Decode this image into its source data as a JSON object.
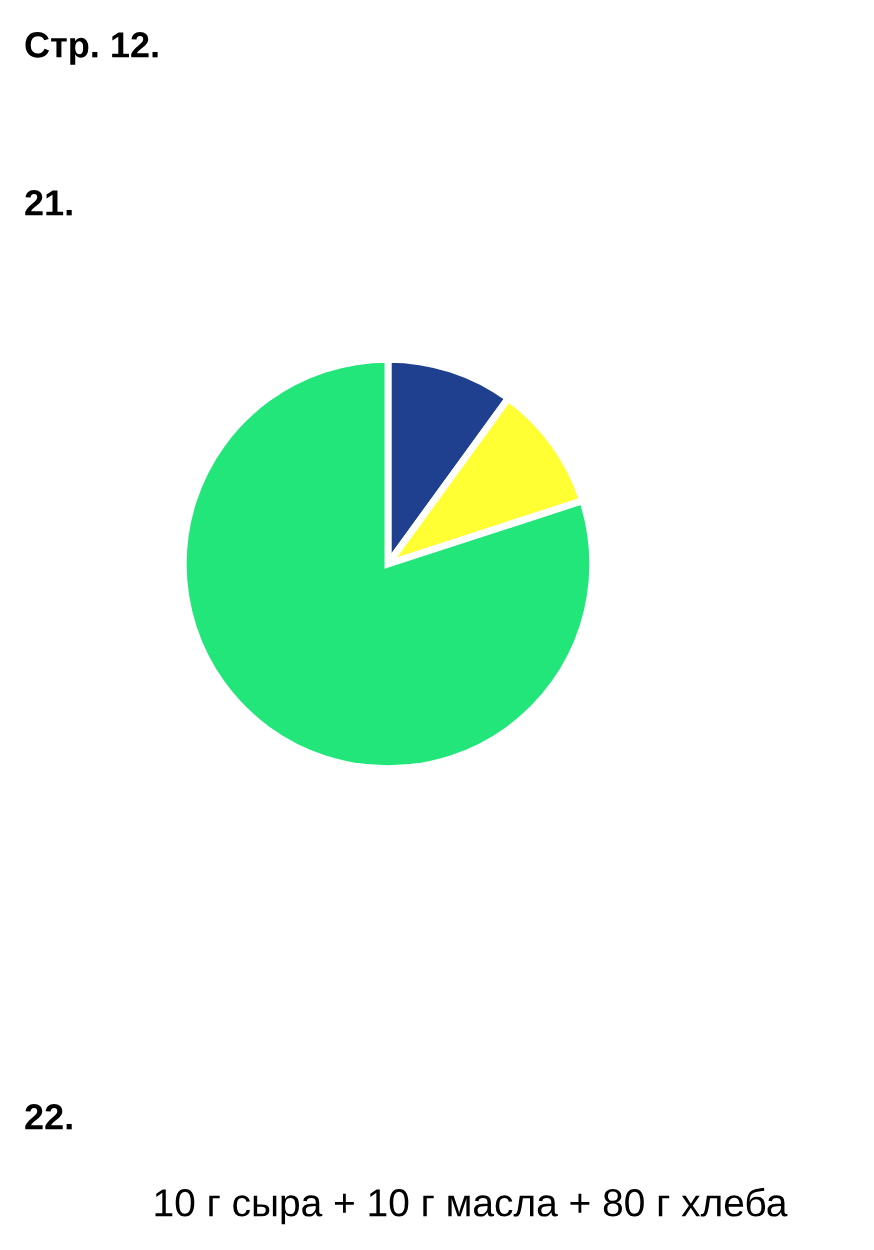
{
  "chart_data": {
    "type": "pie",
    "title": "Стр. 12.",
    "annotations": [
      "21.",
      "22.",
      "10 г сыра + 10 г масла + 80 г хлеба"
    ],
    "categories": [
      null,
      null,
      null
    ],
    "values": [
      10,
      10,
      80
    ],
    "colors": [
      "#1f3f8f",
      "#ffff33",
      "#22e67a"
    ]
  }
}
